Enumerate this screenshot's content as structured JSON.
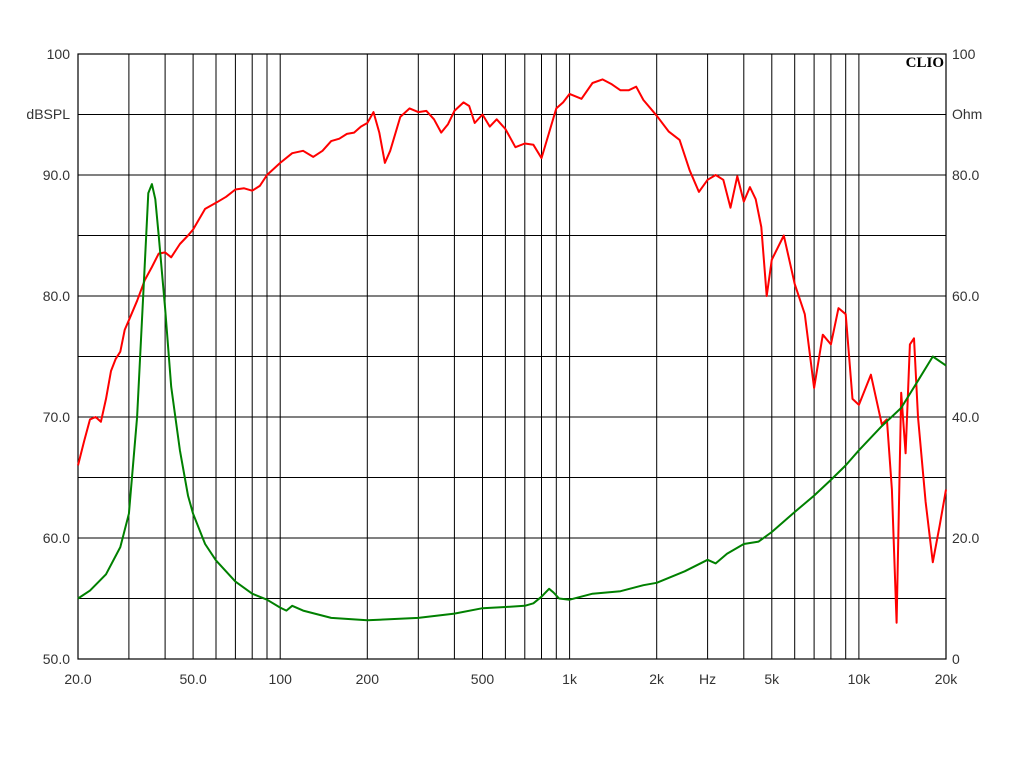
{
  "chart_data": {
    "type": "line",
    "brand": "CLIO",
    "x_scale": "log",
    "xlim": [
      20,
      20000
    ],
    "ylim_left": [
      50,
      100
    ],
    "ylim_right": [
      0,
      100
    ],
    "grid": true,
    "left_axis": {
      "unit_label": "dBSPL",
      "tick_values": [
        100,
        90,
        80,
        70,
        60,
        50
      ],
      "tick_labels": [
        "100",
        "90.0",
        "80.0",
        "70.0",
        "60.0",
        "50.0"
      ]
    },
    "right_axis": {
      "unit_label": "Ohm",
      "tick_values": [
        100,
        80,
        60,
        40,
        20,
        0
      ],
      "tick_labels": [
        "100",
        "80.0",
        "60.0",
        "40.0",
        "20.0",
        "0"
      ]
    },
    "x_axis": {
      "unit_label": "Hz",
      "unit_label_at": 3000,
      "tick_values": [
        20,
        50,
        100,
        200,
        500,
        1000,
        2000,
        5000,
        10000,
        20000
      ],
      "tick_labels": [
        "20.0",
        "50.0",
        "100",
        "200",
        "500",
        "1k",
        "2k",
        "5k",
        "10k",
        "20k"
      ]
    },
    "series": [
      {
        "axis": "left",
        "color": "#ff0000",
        "points": [
          [
            20,
            66.0
          ],
          [
            21,
            68.0
          ],
          [
            22,
            69.8
          ],
          [
            23,
            70.0
          ],
          [
            24,
            69.6
          ],
          [
            25,
            71.5
          ],
          [
            26,
            73.8
          ],
          [
            27,
            74.8
          ],
          [
            28,
            75.4
          ],
          [
            29,
            77.2
          ],
          [
            30,
            78.0
          ],
          [
            32,
            79.6
          ],
          [
            34,
            81.3
          ],
          [
            36,
            82.4
          ],
          [
            38,
            83.5
          ],
          [
            40,
            83.6
          ],
          [
            42,
            83.2
          ],
          [
            45,
            84.3
          ],
          [
            48,
            85.0
          ],
          [
            50,
            85.5
          ],
          [
            55,
            87.2
          ],
          [
            60,
            87.7
          ],
          [
            65,
            88.2
          ],
          [
            70,
            88.8
          ],
          [
            75,
            88.9
          ],
          [
            80,
            88.7
          ],
          [
            85,
            89.1
          ],
          [
            90,
            90.0
          ],
          [
            100,
            91.0
          ],
          [
            110,
            91.8
          ],
          [
            120,
            92.0
          ],
          [
            130,
            91.5
          ],
          [
            140,
            92.0
          ],
          [
            150,
            92.8
          ],
          [
            160,
            93.0
          ],
          [
            170,
            93.4
          ],
          [
            180,
            93.5
          ],
          [
            190,
            94.0
          ],
          [
            200,
            94.3
          ],
          [
            210,
            95.2
          ],
          [
            220,
            93.5
          ],
          [
            230,
            91.0
          ],
          [
            240,
            92.0
          ],
          [
            260,
            94.8
          ],
          [
            280,
            95.5
          ],
          [
            300,
            95.2
          ],
          [
            320,
            95.3
          ],
          [
            340,
            94.6
          ],
          [
            360,
            93.5
          ],
          [
            380,
            94.2
          ],
          [
            400,
            95.3
          ],
          [
            430,
            96.0
          ],
          [
            450,
            95.7
          ],
          [
            470,
            94.3
          ],
          [
            500,
            95.0
          ],
          [
            530,
            94.0
          ],
          [
            560,
            94.6
          ],
          [
            600,
            93.8
          ],
          [
            650,
            92.3
          ],
          [
            700,
            92.6
          ],
          [
            750,
            92.5
          ],
          [
            800,
            91.4
          ],
          [
            850,
            93.5
          ],
          [
            900,
            95.5
          ],
          [
            950,
            96.0
          ],
          [
            1000,
            96.7
          ],
          [
            1100,
            96.3
          ],
          [
            1200,
            97.6
          ],
          [
            1300,
            97.9
          ],
          [
            1400,
            97.5
          ],
          [
            1500,
            97.0
          ],
          [
            1600,
            97.0
          ],
          [
            1700,
            97.3
          ],
          [
            1800,
            96.2
          ],
          [
            2000,
            94.9
          ],
          [
            2200,
            93.6
          ],
          [
            2400,
            92.9
          ],
          [
            2600,
            90.4
          ],
          [
            2800,
            88.6
          ],
          [
            3000,
            89.6
          ],
          [
            3200,
            90.0
          ],
          [
            3400,
            89.6
          ],
          [
            3600,
            87.3
          ],
          [
            3800,
            89.9
          ],
          [
            4000,
            87.8
          ],
          [
            4200,
            89.0
          ],
          [
            4400,
            88.0
          ],
          [
            4600,
            85.7
          ],
          [
            4800,
            80.0
          ],
          [
            5000,
            83.0
          ],
          [
            5500,
            85.0
          ],
          [
            6000,
            81.0
          ],
          [
            6500,
            78.5
          ],
          [
            7000,
            72.4
          ],
          [
            7500,
            76.8
          ],
          [
            8000,
            76.0
          ],
          [
            8500,
            79.0
          ],
          [
            9000,
            78.5
          ],
          [
            9500,
            71.5
          ],
          [
            10000,
            71.0
          ],
          [
            11000,
            73.5
          ],
          [
            12000,
            69.4
          ],
          [
            12500,
            69.8
          ],
          [
            13000,
            64.0
          ],
          [
            13500,
            53.0
          ],
          [
            14000,
            72.0
          ],
          [
            14500,
            67.0
          ],
          [
            15000,
            76.0
          ],
          [
            15500,
            76.5
          ],
          [
            16000,
            70.0
          ],
          [
            17000,
            63.0
          ],
          [
            18000,
            58.0
          ],
          [
            19000,
            61.0
          ],
          [
            20000,
            64.0
          ]
        ]
      },
      {
        "axis": "right",
        "color": "#008000",
        "points": [
          [
            20,
            10.0
          ],
          [
            22,
            11.3
          ],
          [
            25,
            14.0
          ],
          [
            28,
            18.5
          ],
          [
            30,
            24.0
          ],
          [
            32,
            40.0
          ],
          [
            34,
            65.0
          ],
          [
            35,
            77.0
          ],
          [
            36,
            78.5
          ],
          [
            37,
            76.0
          ],
          [
            38,
            70.0
          ],
          [
            40,
            58.0
          ],
          [
            42,
            45.0
          ],
          [
            45,
            34.5
          ],
          [
            48,
            27.0
          ],
          [
            50,
            24.0
          ],
          [
            55,
            19.0
          ],
          [
            60,
            16.3
          ],
          [
            70,
            12.8
          ],
          [
            80,
            10.8
          ],
          [
            90,
            9.8
          ],
          [
            100,
            8.5
          ],
          [
            105,
            8.0
          ],
          [
            110,
            8.8
          ],
          [
            120,
            8.0
          ],
          [
            150,
            6.8
          ],
          [
            200,
            6.4
          ],
          [
            300,
            6.8
          ],
          [
            400,
            7.5
          ],
          [
            500,
            8.4
          ],
          [
            600,
            8.6
          ],
          [
            700,
            8.8
          ],
          [
            750,
            9.2
          ],
          [
            800,
            10.3
          ],
          [
            850,
            11.6
          ],
          [
            880,
            11.0
          ],
          [
            920,
            10.0
          ],
          [
            1000,
            9.8
          ],
          [
            1200,
            10.8
          ],
          [
            1500,
            11.2
          ],
          [
            1800,
            12.2
          ],
          [
            2000,
            12.6
          ],
          [
            2500,
            14.5
          ],
          [
            3000,
            16.4
          ],
          [
            3200,
            15.8
          ],
          [
            3500,
            17.4
          ],
          [
            4000,
            19.0
          ],
          [
            4500,
            19.4
          ],
          [
            5000,
            21.0
          ],
          [
            6000,
            24.3
          ],
          [
            7000,
            27.0
          ],
          [
            8000,
            29.6
          ],
          [
            9000,
            32.0
          ],
          [
            10000,
            34.5
          ],
          [
            12000,
            38.5
          ],
          [
            14000,
            41.5
          ],
          [
            16000,
            46.0
          ],
          [
            18000,
            50.0
          ],
          [
            20000,
            48.5
          ]
        ]
      }
    ]
  }
}
